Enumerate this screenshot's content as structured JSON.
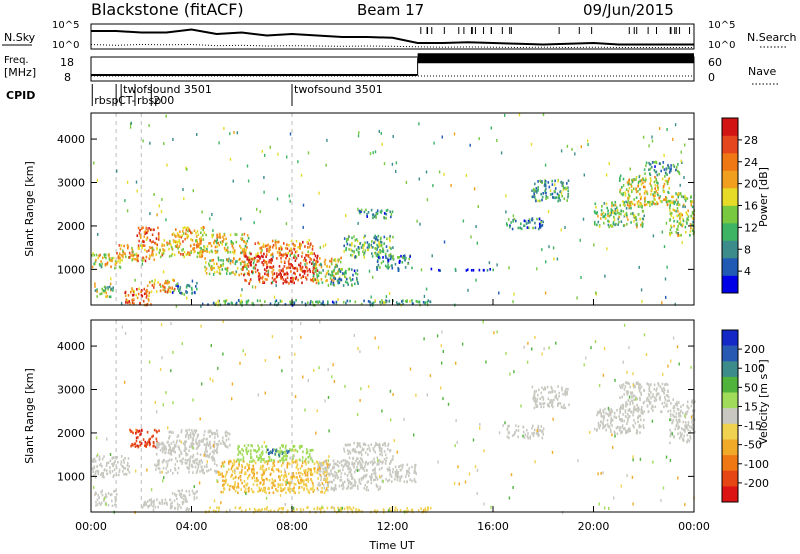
{
  "header": {
    "station": "Blackstone (fitACF)",
    "beam": "Beam 17",
    "date": "09/Jun/2015"
  },
  "strip_sky": {
    "left_label": "N.Sky",
    "right_label": "N.Search",
    "left_ticks": [
      "10^5",
      "10^0"
    ],
    "right_ticks": [
      "10^5",
      "10^0"
    ],
    "sky_level": [
      1.2,
      1.2,
      1.1,
      1.1,
      1.3,
      1.0,
      1.1,
      0.9,
      1.0,
      0.9,
      0.8,
      0.8,
      0.75,
      0.4,
      0.4,
      0.45,
      0.4,
      0.35,
      0.3,
      0.35,
      0.4,
      0.3,
      0.3,
      0.3,
      0.3
    ],
    "search_level": [
      0.3,
      0.25,
      0.3,
      0.28,
      0.3,
      0.22,
      0.25,
      0.2,
      0.22,
      0.2,
      0.18,
      0.2,
      0.18,
      0.15,
      0.12,
      0.14,
      0.12,
      0.1,
      0.12,
      0.1,
      0.12,
      0.1,
      0.1,
      0.1,
      0.1
    ]
  },
  "strip_freq": {
    "left_label_top": "Freq.",
    "left_label_bottom": "[MHz]",
    "right_label": "Nave",
    "left_ticks": [
      "18",
      "8"
    ],
    "right_ticks": [
      "60",
      "0"
    ],
    "freq_segments": [
      {
        "start_h": 0,
        "end_h": 13.0,
        "mhz": 10.5
      },
      {
        "start_h": 13.0,
        "end_h": 24,
        "mhz": 17.5
      }
    ]
  },
  "cpid": {
    "label": "CPID",
    "entries": [
      {
        "hour": 0.05,
        "label": "rbsp"
      },
      {
        "hour": 1.0,
        "label": "CT-"
      },
      {
        "hour": 1.2,
        "label": "twofsound 3501"
      },
      {
        "hour": 1.75,
        "label": "rbsp"
      },
      {
        "hour": 2.4,
        "label": "200"
      },
      {
        "hour": 8.0,
        "label": "twofsound 3501"
      }
    ]
  },
  "chart_data": [
    {
      "type": "heatmap",
      "name": "power",
      "ylabel": "Slant Range [km]",
      "y_ticks": [
        1000,
        2000,
        3000,
        4000
      ],
      "ylim": [
        180,
        4600
      ],
      "xlim": [
        0,
        24
      ],
      "colorbar_label": "Power [dB]",
      "colorbar_ticks": [
        "4",
        "8",
        "12",
        "16",
        "20",
        "24",
        "28"
      ],
      "colorbar_colors": [
        "#0000e6",
        "#205ab4",
        "#3c8c8c",
        "#3cb464",
        "#78c840",
        "#e6dc28",
        "#f0a01e",
        "#f07814",
        "#e6461e",
        "#d21414"
      ],
      "regions": [
        {
          "x0": 0.0,
          "x1": 1.2,
          "y0": 1050,
          "y1": 1400,
          "value": 18
        },
        {
          "x0": 1.0,
          "x1": 2.5,
          "y0": 1200,
          "y1": 1600,
          "value": 22
        },
        {
          "x0": 1.8,
          "x1": 2.7,
          "y0": 1650,
          "y1": 2000,
          "value": 26
        },
        {
          "x0": 2.4,
          "x1": 4.5,
          "y0": 1300,
          "y1": 1700,
          "value": 20
        },
        {
          "x0": 3.2,
          "x1": 4.5,
          "y0": 1650,
          "y1": 2000,
          "value": 20
        },
        {
          "x0": 4.3,
          "x1": 6.3,
          "y0": 1400,
          "y1": 1850,
          "value": 18
        },
        {
          "x0": 4.5,
          "x1": 6.5,
          "y0": 900,
          "y1": 1300,
          "value": 16
        },
        {
          "x0": 6.0,
          "x1": 9.0,
          "y0": 700,
          "y1": 1400,
          "value": 28
        },
        {
          "x0": 6.5,
          "x1": 8.8,
          "y0": 1350,
          "y1": 1700,
          "value": 22
        },
        {
          "x0": 8.8,
          "x1": 10.0,
          "y0": 700,
          "y1": 1300,
          "value": 16
        },
        {
          "x0": 9.5,
          "x1": 10.6,
          "y0": 650,
          "y1": 1050,
          "value": 10
        },
        {
          "x0": 1.3,
          "x1": 2.4,
          "y0": 200,
          "y1": 600,
          "value": 24
        },
        {
          "x0": 2.2,
          "x1": 3.3,
          "y0": 480,
          "y1": 800,
          "value": 20
        },
        {
          "x0": 0.1,
          "x1": 0.9,
          "y0": 380,
          "y1": 700,
          "value": 14
        },
        {
          "x0": 3.2,
          "x1": 4.2,
          "y0": 450,
          "y1": 720,
          "value": 8
        },
        {
          "x0": 10.0,
          "x1": 12.0,
          "y0": 1300,
          "y1": 1800,
          "value": 12
        },
        {
          "x0": 11.2,
          "x1": 12.8,
          "y0": 1000,
          "y1": 1350,
          "value": 8
        },
        {
          "x0": 10.6,
          "x1": 12.0,
          "y0": 2200,
          "y1": 2400,
          "value": 8
        },
        {
          "x0": 13.5,
          "x1": 16.0,
          "y0": 1000,
          "y1": 1050,
          "value": 4
        },
        {
          "x0": 16.5,
          "x1": 18.0,
          "y0": 1950,
          "y1": 2200,
          "value": 8
        },
        {
          "x0": 17.5,
          "x1": 19.0,
          "y0": 2600,
          "y1": 3100,
          "value": 10
        },
        {
          "x0": 20.0,
          "x1": 22.0,
          "y0": 2000,
          "y1": 2600,
          "value": 14
        },
        {
          "x0": 21.0,
          "x1": 23.0,
          "y0": 2500,
          "y1": 3200,
          "value": 18
        },
        {
          "x0": 23.0,
          "x1": 24.0,
          "y0": 1800,
          "y1": 2800,
          "value": 16
        },
        {
          "x0": 22.0,
          "x1": 23.5,
          "y0": 3200,
          "y1": 3500,
          "value": 10
        },
        {
          "x0": 4.5,
          "x1": 13.5,
          "y0": 200,
          "y1": 320,
          "value": 10
        }
      ]
    },
    {
      "type": "heatmap",
      "name": "velocity",
      "ylabel": "Slant Range [km]",
      "y_ticks": [
        1000,
        2000,
        3000,
        4000
      ],
      "ylim": [
        180,
        4600
      ],
      "xlim": [
        0,
        24
      ],
      "xlabel": "Time UT",
      "x_ticks": [
        "00:00",
        "04:00",
        "08:00",
        "12:00",
        "16:00",
        "20:00",
        "00:00"
      ],
      "colorbar_label": "Velocity [m s⁻¹]",
      "colorbar_ticks": [
        "200",
        "100",
        "50",
        "15",
        "-15",
        "-50",
        "-100",
        "-200"
      ],
      "colorbar_colors": [
        "#1428c8",
        "#285ab4",
        "#3c8c8c",
        "#50b43c",
        "#a0dc5a",
        "#c8c8c0",
        "#f0d250",
        "#f0aa28",
        "#f07814",
        "#e64614",
        "#dc1414"
      ],
      "regions": [
        {
          "x0": 0.0,
          "x1": 1.5,
          "y0": 1000,
          "y1": 1500,
          "value": 0
        },
        {
          "x0": 1.5,
          "x1": 2.7,
          "y0": 1700,
          "y1": 2100,
          "value": -180
        },
        {
          "x0": 2.5,
          "x1": 5.0,
          "y0": 1100,
          "y1": 1800,
          "value": 0
        },
        {
          "x0": 3.0,
          "x1": 5.5,
          "y0": 1700,
          "y1": 2100,
          "value": 0
        },
        {
          "x0": 5.0,
          "x1": 9.5,
          "y0": 650,
          "y1": 1400,
          "value": -60
        },
        {
          "x0": 5.8,
          "x1": 8.8,
          "y0": 1350,
          "y1": 1750,
          "value": 40
        },
        {
          "x0": 7.0,
          "x1": 8.0,
          "y0": 1500,
          "y1": 1650,
          "value": 150
        },
        {
          "x0": 9.0,
          "x1": 11.5,
          "y0": 700,
          "y1": 1400,
          "value": 0
        },
        {
          "x0": 10.0,
          "x1": 12.0,
          "y0": 1300,
          "y1": 1800,
          "value": 0
        },
        {
          "x0": 11.5,
          "x1": 13.0,
          "y0": 900,
          "y1": 1300,
          "value": 0
        },
        {
          "x0": 0.1,
          "x1": 1.0,
          "y0": 350,
          "y1": 700,
          "value": 0
        },
        {
          "x0": 3.2,
          "x1": 4.2,
          "y0": 450,
          "y1": 720,
          "value": 0
        },
        {
          "x0": 2.0,
          "x1": 4.0,
          "y0": 250,
          "y1": 500,
          "value": 0
        },
        {
          "x0": 16.5,
          "x1": 18.0,
          "y0": 1900,
          "y1": 2200,
          "value": 0
        },
        {
          "x0": 17.5,
          "x1": 19.0,
          "y0": 2600,
          "y1": 3100,
          "value": 0
        },
        {
          "x0": 20.0,
          "x1": 22.0,
          "y0": 2000,
          "y1": 2600,
          "value": 0
        },
        {
          "x0": 21.0,
          "x1": 23.0,
          "y0": 2500,
          "y1": 3200,
          "value": 0
        },
        {
          "x0": 23.0,
          "x1": 24.0,
          "y0": 1800,
          "y1": 2800,
          "value": 0
        },
        {
          "x0": 4.5,
          "x1": 13.5,
          "y0": 200,
          "y1": 320,
          "value": -40
        }
      ]
    }
  ]
}
